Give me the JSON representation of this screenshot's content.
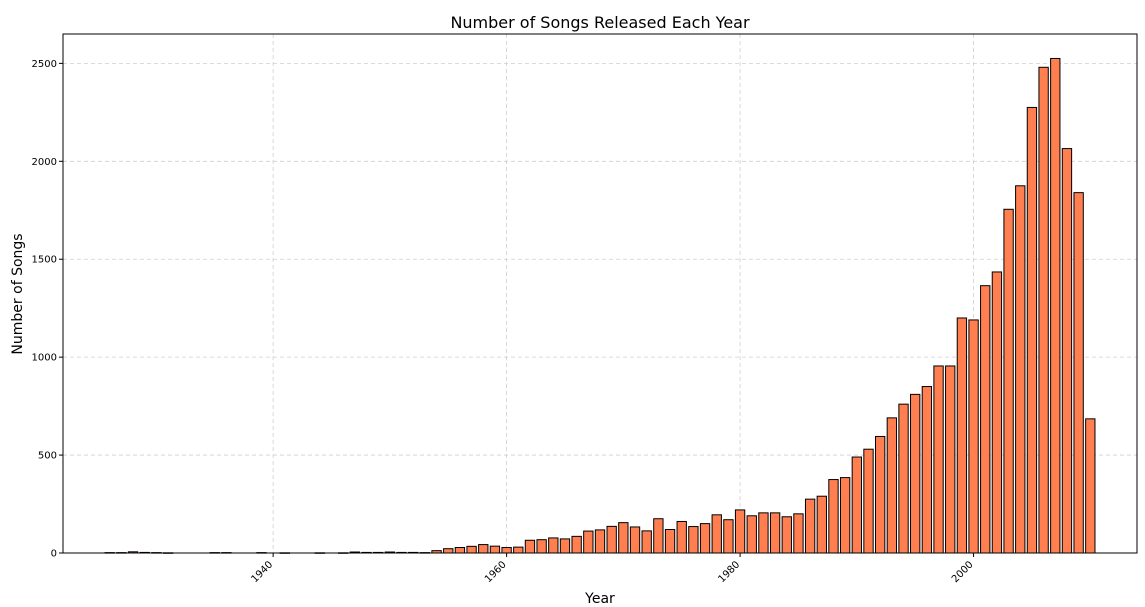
{
  "chart_data": {
    "type": "bar",
    "title": "Number of Songs Released Each Year",
    "xlabel": "Year",
    "ylabel": "Number of Songs",
    "xlim": [
      1922,
      2014
    ],
    "ylim": [
      0,
      2650
    ],
    "x_ticks": [
      1940,
      1960,
      1980,
      2000
    ],
    "y_ticks": [
      0,
      500,
      1000,
      1500,
      2000,
      2500
    ],
    "grid": true,
    "bar_color": "#ff7f50",
    "edge_color": "#000000",
    "x": [
      1926,
      1927,
      1928,
      1929,
      1930,
      1931,
      1935,
      1936,
      1939,
      1941,
      1944,
      1946,
      1947,
      1948,
      1949,
      1950,
      1951,
      1952,
      1953,
      1954,
      1955,
      1956,
      1957,
      1958,
      1959,
      1960,
      1961,
      1962,
      1963,
      1964,
      1965,
      1966,
      1967,
      1968,
      1969,
      1970,
      1971,
      1972,
      1973,
      1974,
      1975,
      1976,
      1977,
      1978,
      1979,
      1980,
      1981,
      1982,
      1983,
      1984,
      1985,
      1986,
      1987,
      1988,
      1989,
      1990,
      1991,
      1992,
      1993,
      1994,
      1995,
      1996,
      1997,
      1998,
      1999,
      2000,
      2001,
      2002,
      2003,
      2004,
      2005,
      2006,
      2007,
      2008,
      2009,
      2010
    ],
    "values": [
      2,
      2,
      6,
      3,
      2,
      1,
      2,
      2,
      2,
      1,
      1,
      1,
      5,
      3,
      3,
      5,
      3,
      3,
      2,
      12,
      22,
      28,
      34,
      43,
      35,
      28,
      30,
      65,
      68,
      77,
      72,
      85,
      112,
      118,
      136,
      155,
      133,
      113,
      175,
      120,
      161,
      135,
      150,
      195,
      170,
      220,
      190,
      205,
      205,
      185,
      200,
      275,
      290,
      375,
      385,
      490,
      530,
      595,
      690,
      760,
      810,
      850,
      955,
      955,
      1200,
      1190,
      1365,
      1435,
      1755,
      1875,
      2275,
      2480,
      2525,
      2065,
      1840,
      685
    ]
  }
}
